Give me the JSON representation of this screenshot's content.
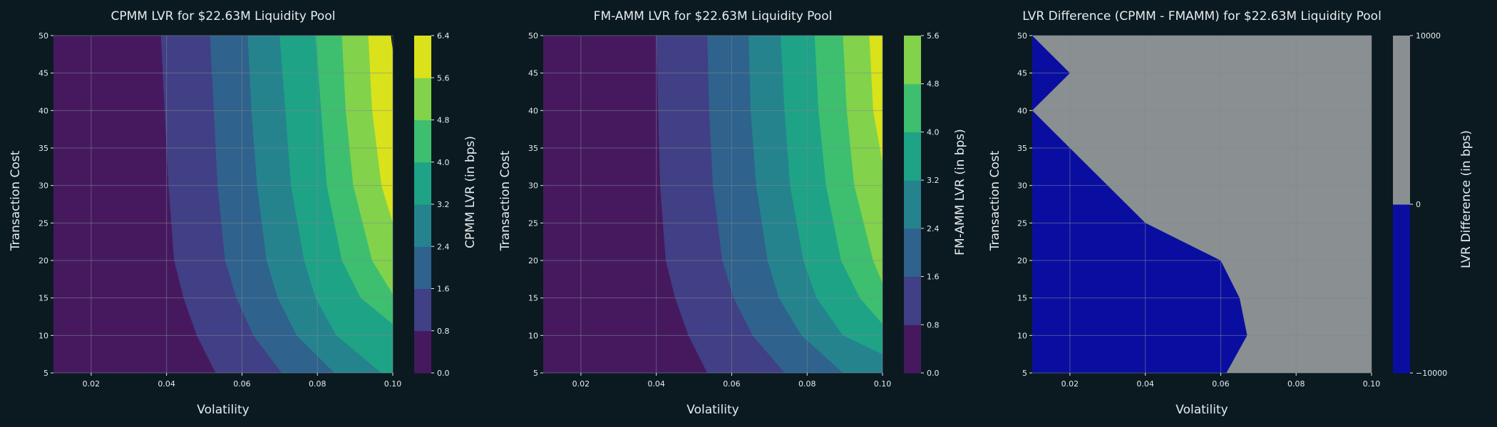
{
  "colors": {
    "background": "#0b1a20",
    "text": "#e6ecee",
    "grid": "#7a8a94",
    "viridis": [
      "#46195f",
      "#413f85",
      "#2f628c",
      "#25838e",
      "#1fa386",
      "#3dbf6f",
      "#82d24c",
      "#d9e21b"
    ],
    "diff_negative": "#0a0ea0",
    "diff_positive": "#8a8f91"
  },
  "chart_data": [
    {
      "type": "contour",
      "title": "CPMM LVR for $22.63M Liquidity Pool",
      "xlabel": "Volatility",
      "ylabel": "Transaction Cost",
      "colorbar_label": "CPMM LVR (in bps)",
      "xlim": [
        0.01,
        0.1
      ],
      "ylim": [
        5,
        50
      ],
      "x_ticks": [
        "0.02",
        "0.04",
        "0.06",
        "0.08",
        "0.10"
      ],
      "x_tick_values": [
        0.02,
        0.04,
        0.06,
        0.08,
        0.1
      ],
      "y_ticks": [
        "5",
        "10",
        "15",
        "20",
        "25",
        "30",
        "35",
        "40",
        "45",
        "50"
      ],
      "y_tick_values": [
        5,
        10,
        15,
        20,
        25,
        30,
        35,
        40,
        45,
        50
      ],
      "levels": [
        0.0,
        0.8,
        1.6,
        2.4,
        3.2,
        4.0,
        4.8,
        5.6,
        6.4
      ],
      "level_labels": [
        "0.0",
        "0.8",
        "1.6",
        "2.4",
        "3.2",
        "4.0",
        "4.8",
        "5.6",
        "6.4"
      ],
      "contour_lines": [
        {
          "level": 0.8,
          "points": [
            [
              0.0385,
              50
            ],
            [
              0.0395,
              40
            ],
            [
              0.0405,
              30
            ],
            [
              0.042,
              20
            ],
            [
              0.0445,
              15
            ],
            [
              0.048,
              10
            ],
            [
              0.053,
              5
            ]
          ]
        },
        {
          "level": 1.6,
          "points": [
            [
              0.0515,
              50
            ],
            [
              0.0525,
              40
            ],
            [
              0.0535,
              30
            ],
            [
              0.0555,
              20
            ],
            [
              0.0585,
              15
            ],
            [
              0.063,
              10
            ],
            [
              0.0705,
              5
            ]
          ]
        },
        {
          "level": 2.4,
          "points": [
            [
              0.0615,
              50
            ],
            [
              0.0625,
              40
            ],
            [
              0.064,
              30
            ],
            [
              0.0665,
              20
            ],
            [
              0.0695,
              15
            ],
            [
              0.0745,
              10
            ],
            [
              0.0845,
              5
            ]
          ]
        },
        {
          "level": 3.2,
          "points": [
            [
              0.07,
              50
            ],
            [
              0.0715,
              40
            ],
            [
              0.073,
              30
            ],
            [
              0.0765,
              20
            ],
            [
              0.0795,
              15
            ],
            [
              0.085,
              10
            ],
            [
              0.097,
              5
            ]
          ]
        },
        {
          "level": 4.0,
          "points": [
            [
              0.0795,
              50
            ],
            [
              0.081,
              40
            ],
            [
              0.0825,
              30
            ],
            [
              0.0865,
              20
            ],
            [
              0.0915,
              15
            ],
            [
              0.1,
              11.5
            ]
          ]
        },
        {
          "level": 4.8,
          "points": [
            [
              0.0865,
              50
            ],
            [
              0.0875,
              40
            ],
            [
              0.0895,
              30
            ],
            [
              0.0945,
              20
            ],
            [
              0.1,
              15.5
            ]
          ]
        },
        {
          "level": 5.6,
          "points": [
            [
              0.0935,
              50
            ],
            [
              0.0945,
              40
            ],
            [
              0.097,
              30
            ],
            [
              0.1,
              25
            ]
          ]
        },
        {
          "level": 6.4,
          "points": [
            [
              0.0995,
              50
            ],
            [
              0.1,
              48
            ]
          ]
        }
      ]
    },
    {
      "type": "contour",
      "title": "FM-AMM LVR for $22.63M Liquidity Pool",
      "xlabel": "Volatility",
      "ylabel": "Transaction Cost",
      "colorbar_label": "FM-AMM LVR (in bps)",
      "xlim": [
        0.01,
        0.1
      ],
      "ylim": [
        5,
        50
      ],
      "x_ticks": [
        "0.02",
        "0.04",
        "0.06",
        "0.08",
        "0.10"
      ],
      "x_tick_values": [
        0.02,
        0.04,
        0.06,
        0.08,
        0.1
      ],
      "y_ticks": [
        "5",
        "10",
        "15",
        "20",
        "25",
        "30",
        "35",
        "40",
        "45",
        "50"
      ],
      "y_tick_values": [
        5,
        10,
        15,
        20,
        25,
        30,
        35,
        40,
        45,
        50
      ],
      "levels": [
        0.0,
        0.8,
        1.6,
        2.4,
        3.2,
        4.0,
        4.8,
        5.6
      ],
      "level_labels": [
        "0.0",
        "0.8",
        "1.6",
        "2.4",
        "3.2",
        "4.0",
        "4.8",
        "5.6"
      ],
      "contour_lines": [
        {
          "level": 0.8,
          "points": [
            [
              0.04,
              50
            ],
            [
              0.0405,
              40
            ],
            [
              0.041,
              30
            ],
            [
              0.0425,
              20
            ],
            [
              0.045,
              15
            ],
            [
              0.0485,
              10
            ],
            [
              0.0535,
              5
            ]
          ]
        },
        {
          "level": 1.6,
          "points": [
            [
              0.0535,
              50
            ],
            [
              0.054,
              40
            ],
            [
              0.055,
              30
            ],
            [
              0.0575,
              20
            ],
            [
              0.0605,
              15
            ],
            [
              0.0655,
              10
            ],
            [
              0.074,
              5
            ]
          ]
        },
        {
          "level": 2.4,
          "points": [
            [
              0.0645,
              50
            ],
            [
              0.065,
              40
            ],
            [
              0.0665,
              30
            ],
            [
              0.0695,
              20
            ],
            [
              0.0725,
              15
            ],
            [
              0.0785,
              10
            ],
            [
              0.0895,
              5
            ]
          ]
        },
        {
          "level": 3.2,
          "points": [
            [
              0.073,
              50
            ],
            [
              0.074,
              40
            ],
            [
              0.0755,
              30
            ],
            [
              0.079,
              20
            ],
            [
              0.0825,
              15
            ],
            [
              0.0895,
              10
            ],
            [
              0.1,
              7.5
            ]
          ]
        },
        {
          "level": 4.0,
          "points": [
            [
              0.082,
              50
            ],
            [
              0.083,
              40
            ],
            [
              0.085,
              30
            ],
            [
              0.089,
              20
            ],
            [
              0.094,
              15
            ],
            [
              0.1,
              11.5
            ]
          ]
        },
        {
          "level": 4.8,
          "points": [
            [
              0.0895,
              50
            ],
            [
              0.0905,
              40
            ],
            [
              0.0925,
              30
            ],
            [
              0.0975,
              20
            ],
            [
              0.1,
              17
            ]
          ]
        },
        {
          "level": 5.6,
          "points": [
            [
              0.0965,
              50
            ],
            [
              0.0975,
              40
            ],
            [
              0.1,
              33
            ]
          ]
        }
      ]
    },
    {
      "type": "contour",
      "title": "LVR Difference (CPMM - FMAMM) for $22.63M Liquidity Pool",
      "xlabel": "Volatility",
      "ylabel": "Transaction Cost",
      "colorbar_label": "LVR Difference (in bps)",
      "xlim": [
        0.01,
        0.1
      ],
      "ylim": [
        5,
        50
      ],
      "x_ticks": [
        "0.02",
        "0.04",
        "0.06",
        "0.08",
        "0.10"
      ],
      "x_tick_values": [
        0.02,
        0.04,
        0.06,
        0.08,
        0.1
      ],
      "y_ticks": [
        "5",
        "10",
        "15",
        "20",
        "25",
        "30",
        "35",
        "40",
        "45",
        "50"
      ],
      "y_tick_values": [
        5,
        10,
        15,
        20,
        25,
        30,
        35,
        40,
        45,
        50
      ],
      "levels": [
        -10000,
        0,
        10000
      ],
      "level_labels": [
        "−10000",
        "0",
        "10000"
      ],
      "negative_region": [
        [
          0.01,
          50
        ],
        [
          0.02,
          45
        ],
        [
          0.01,
          40
        ],
        [
          0.02,
          35
        ],
        [
          0.04,
          25
        ],
        [
          0.06,
          20
        ],
        [
          0.065,
          15
        ],
        [
          0.067,
          10
        ],
        [
          0.0615,
          5
        ],
        [
          0.01,
          5
        ]
      ]
    }
  ]
}
